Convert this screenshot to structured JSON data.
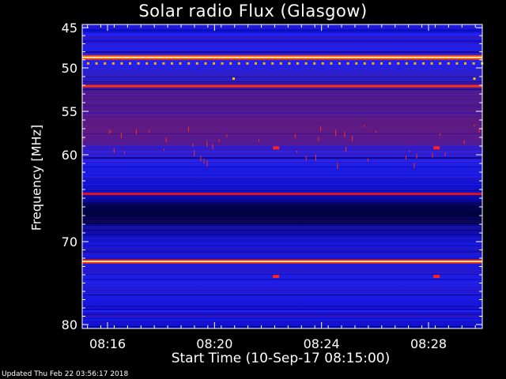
{
  "chart_data": {
    "type": "heatmap",
    "title": "Solar radio Flux (Glasgow)",
    "ylabel": "Frequency [MHz]",
    "xlabel": "Start Time (10-Sep-17 08:15:00)",
    "footer": "Updated Thu Feb 22 03:56:17 2018",
    "y_ticks": [
      {
        "label": "45",
        "value": 45
      },
      {
        "label": "50",
        "value": 50
      },
      {
        "label": "55",
        "value": 55
      },
      {
        "label": "60",
        "value": 60
      },
      {
        "label": "70",
        "value": 70
      },
      {
        "label": "80",
        "value": 80
      }
    ],
    "x_ticks": [
      {
        "label": "08:16",
        "value": 1
      },
      {
        "label": "08:20",
        "value": 5
      },
      {
        "label": "08:24",
        "value": 9
      },
      {
        "label": "08:28",
        "value": 13
      }
    ],
    "x_range_minutes": [
      0,
      15
    ],
    "y_range_mhz": [
      45,
      80
    ],
    "colormap": [
      "#000000",
      "#0000c8",
      "#2020ff",
      "#8b008b",
      "#ff0000",
      "#ffa500",
      "#ffff80"
    ],
    "bright_bands_mhz": [
      48.7,
      52.1,
      64.5,
      72.4
    ],
    "grid": false
  }
}
